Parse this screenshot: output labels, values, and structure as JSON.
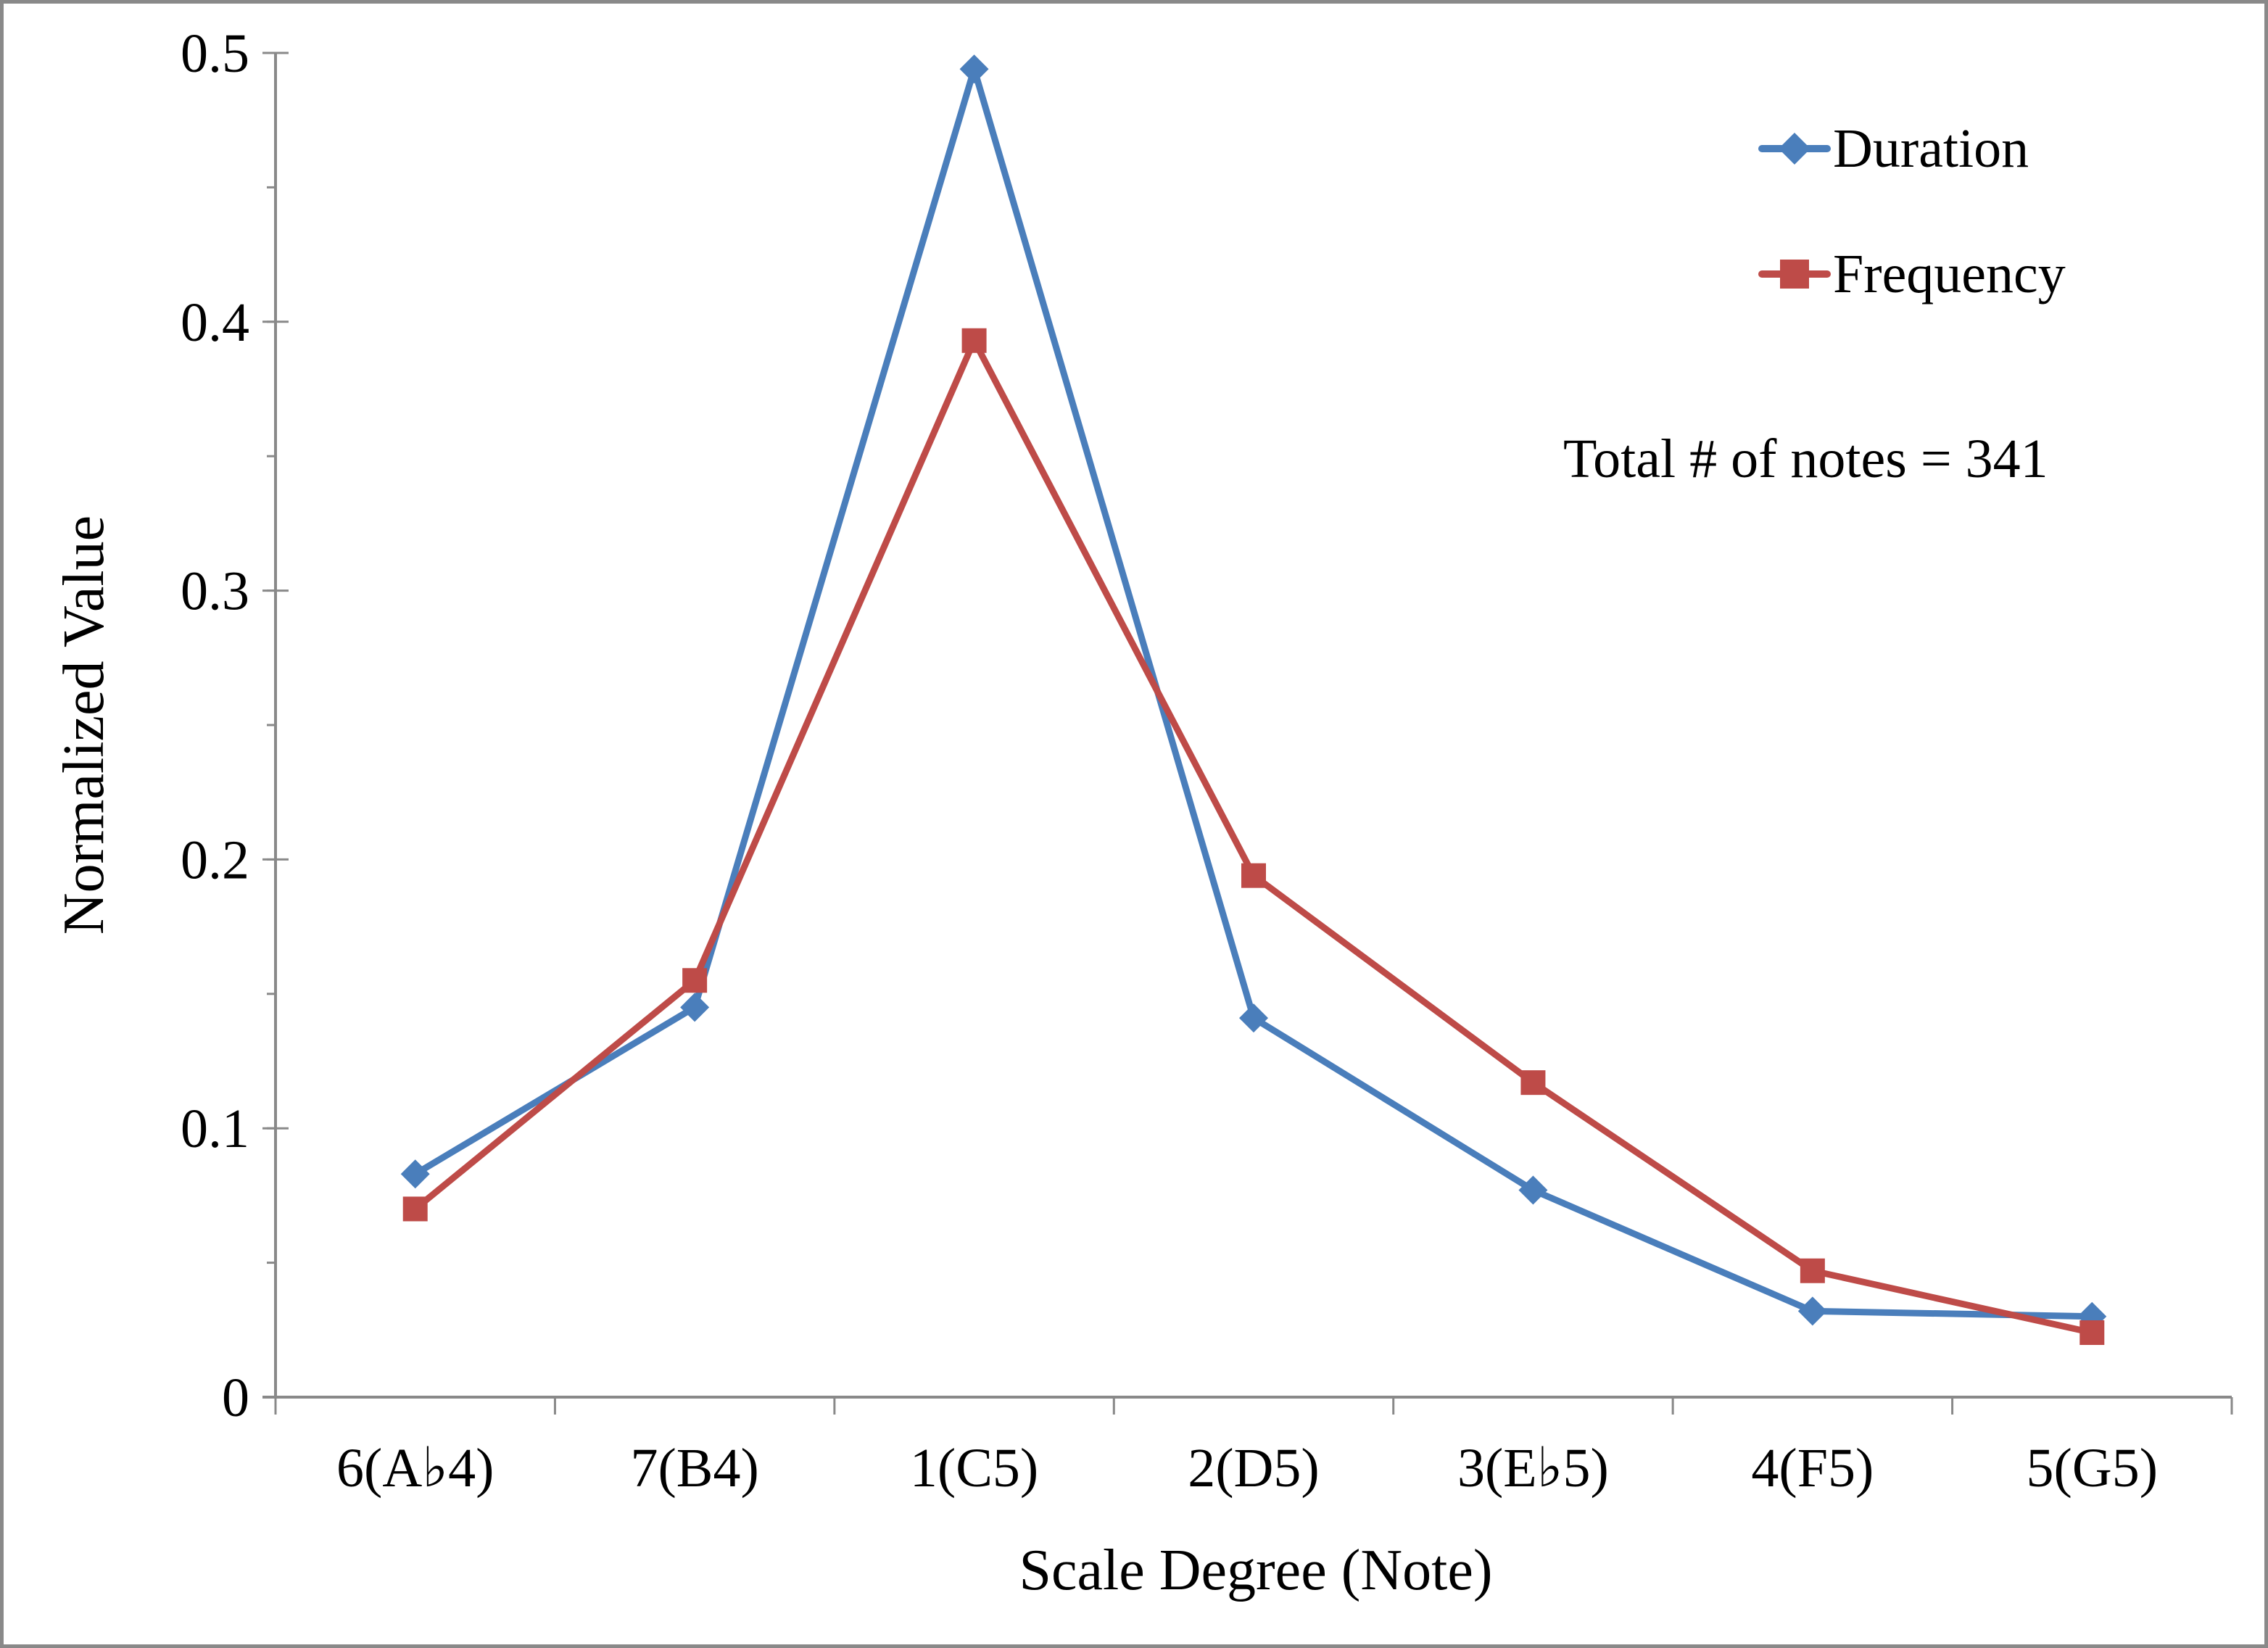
{
  "chart_data": {
    "type": "line",
    "title": "",
    "xlabel": "Scale Degree (Note)",
    "ylabel": "Normalized Value",
    "ylim": [
      0,
      0.5
    ],
    "yticks": [
      "0",
      "0.1",
      "0.2",
      "0.3",
      "0.4",
      "0.5"
    ],
    "ytick_values": [
      0,
      0.1,
      0.2,
      0.3,
      0.4,
      0.5
    ],
    "minor_tick_step": 0.05,
    "grid": false,
    "legend_position": "top-right",
    "categories": [
      "6(A♭4)",
      "7(B4)",
      "1(C5)",
      "2(D5)",
      "3(E♭5)",
      "4(F5)",
      "5(G5)"
    ],
    "series": [
      {
        "name": "Duration",
        "color": "#4A7EBB",
        "marker": "diamond",
        "values": [
          0.083,
          0.145,
          0.494,
          0.141,
          0.077,
          0.032,
          0.03
        ]
      },
      {
        "name": "Frequency",
        "color": "#BE4B48",
        "marker": "square",
        "values": [
          0.07,
          0.155,
          0.393,
          0.194,
          0.117,
          0.047,
          0.024
        ]
      }
    ],
    "annotation": "Total # of notes = 341"
  }
}
